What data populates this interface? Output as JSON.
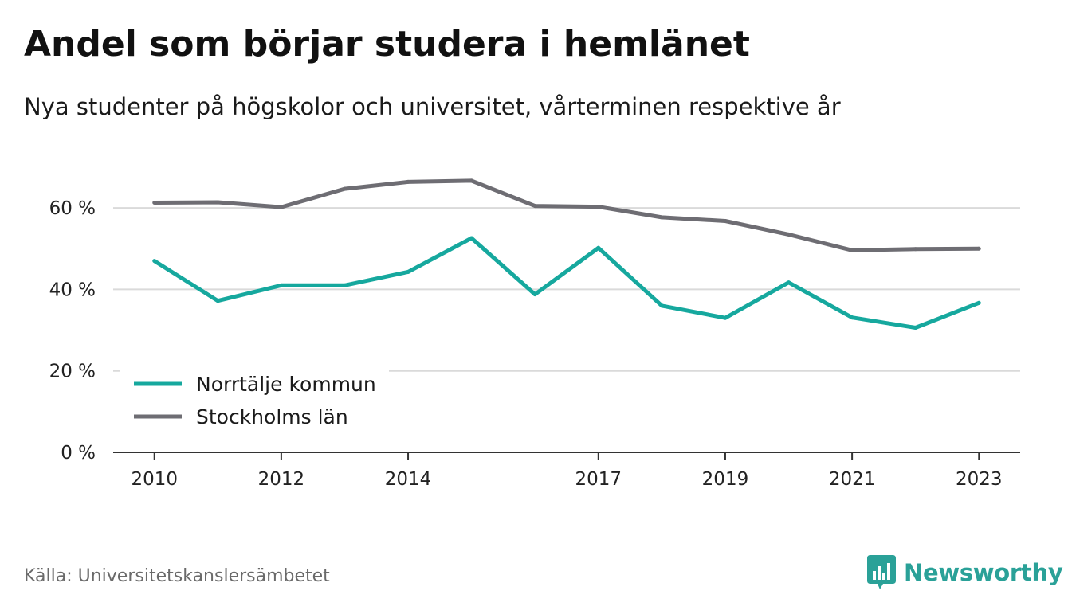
{
  "header": {
    "title": "Andel som börjar studera i hemlänet",
    "subtitle": "Nya studenter på högskolor och universitet, vårterminen respektive år"
  },
  "footer": {
    "source": "Källa: Universitetskanslersämbetet",
    "brand_name": "Newsworthy",
    "brand_icon": "bar-chart-speech-bubble-icon"
  },
  "chart_data": {
    "type": "line",
    "x": [
      2010,
      2011,
      2012,
      2013,
      2014,
      2015,
      2016,
      2017,
      2018,
      2019,
      2020,
      2021,
      2022,
      2023
    ],
    "xticks": [
      2010,
      2012,
      2014,
      2017,
      2019,
      2021,
      2023
    ],
    "xtick_labels": [
      "2010",
      "2012",
      "2014",
      "2017",
      "2019",
      "2021",
      "2023"
    ],
    "yticks": [
      0,
      20,
      40,
      60
    ],
    "ytick_labels": [
      "0 %",
      "20 %",
      "40 %",
      "60 %"
    ],
    "ylim": [
      0,
      70
    ],
    "xlim": [
      2009.35,
      2023.65
    ],
    "grid": "horizontal",
    "legend_position": "bottom-left",
    "series": [
      {
        "name": "Norrtälje kommun",
        "color": "#16a89e",
        "values": [
          47.0,
          37.2,
          41.0,
          41.0,
          44.3,
          52.6,
          38.8,
          50.2,
          36.0,
          33.0,
          41.7,
          33.1,
          30.6,
          36.7
        ]
      },
      {
        "name": "Stockholms län",
        "color": "#6e6d73",
        "values": [
          61.3,
          61.4,
          60.2,
          64.7,
          66.4,
          66.7,
          60.5,
          60.3,
          57.7,
          56.8,
          53.5,
          49.6,
          49.9,
          50.0
        ]
      }
    ]
  }
}
